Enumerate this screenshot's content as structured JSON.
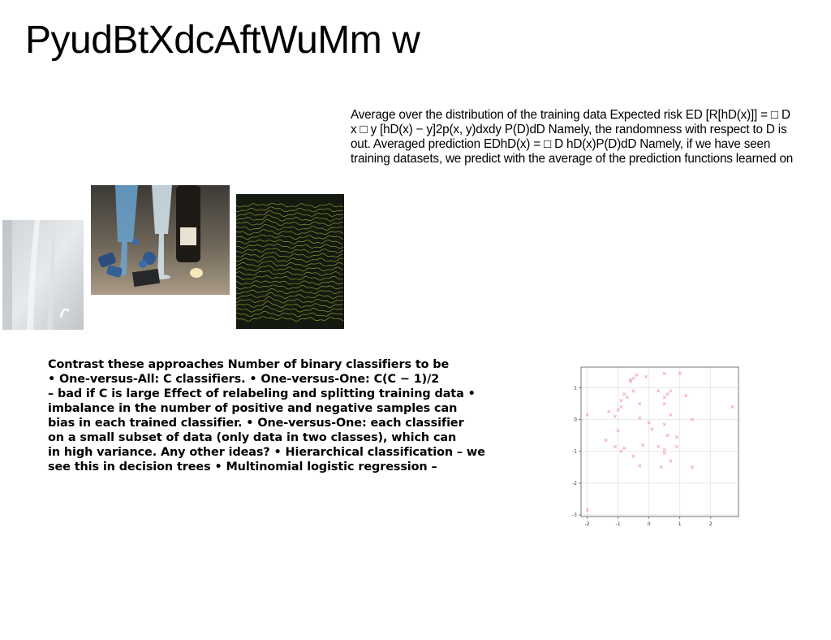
{
  "title": "PyudBtXdcAftWuMm w",
  "paragraph_right": [
    "Average over the distribution of the training data Expected risk ED [R[hD(x)]] = □ D",
    "x □ y [hD(x) − y]2p(x, y)dxdy P(D)dD Namely, the randomness with respect to D is",
    "out. Averaged prediction EDhD(x) = □ D hD(x)P(D)dD Namely, if we have seen",
    "training datasets, we predict with the average of the prediction functions learned on"
  ],
  "paragraph_left": [
    "Contrast these approaches Number of binary classifiers to be",
    "• One-versus-All: C classifiers. • One-versus-One: C(C − 1)/2",
    "– bad if C is large Effect of relabeling and splitting training data •",
    "imbalance in the number of positive and negative samples can",
    "bias in each trained classifier. • One-versus-One: each classifier",
    "on a small subset of data (only data in two classes), which can",
    "in high variance. Any other ideas? • Hierarchical classification – we",
    "see this in decision trees • Multinomial logistic regression –"
  ],
  "images": {
    "frosted": "frosted-glass-photo",
    "party": "blue-champagne-party-photo",
    "waves": "eeg-waveform-photo"
  },
  "colors": {
    "marker": "#f0a0c8",
    "waves_bg": "#141a10",
    "waves_line": "#b8c23a"
  },
  "chart_data": {
    "type": "scatter",
    "title": "",
    "xlabel": "",
    "ylabel": "",
    "xlim": [
      -2.2,
      2.9
    ],
    "ylim": [
      -3.05,
      1.65
    ],
    "xticks": [
      "-2",
      "-1",
      "0",
      "1",
      "2"
    ],
    "yticks": [
      "1",
      "0",
      "-1",
      "-2",
      "-3"
    ],
    "xtick_values": [
      -2,
      -1,
      0,
      1,
      2
    ],
    "ytick_values": [
      1,
      0,
      -1,
      -2,
      -3
    ],
    "grid": true,
    "marker": "x",
    "x": [
      -0.6,
      -0.5,
      -0.4,
      -0.1,
      0.5,
      1.0,
      -0.7,
      -0.6,
      0.5,
      -0.8,
      -0.9,
      -0.5,
      0.6,
      0.3,
      0.5,
      -0.3,
      -0.9,
      -1.0,
      0.7,
      1.2,
      -1.3,
      -1.1,
      -2.0,
      -0.3,
      0.5,
      0.0,
      0.1,
      0.6,
      1.4,
      -1.4,
      -0.2,
      -0.5,
      -1.1,
      -0.9,
      2.7,
      -0.8,
      0.5,
      0.9,
      0.9,
      -0.3,
      1.4,
      0.4,
      0.3,
      0.5,
      0.7,
      -1.0,
      0.7,
      -2.0
    ],
    "y": [
      1.2,
      1.3,
      1.4,
      1.35,
      1.45,
      1.45,
      0.7,
      1.25,
      0.7,
      0.8,
      0.6,
      0.9,
      0.8,
      0.9,
      0.5,
      0.5,
      0.4,
      0.3,
      0.15,
      0.75,
      0.25,
      0.1,
      0.15,
      0.05,
      -0.15,
      -0.1,
      -0.3,
      -0.5,
      0.0,
      -0.65,
      -0.8,
      -1.15,
      -0.85,
      -1.0,
      0.4,
      -0.9,
      -0.95,
      -0.55,
      -0.85,
      -1.45,
      -1.5,
      -1.5,
      -0.85,
      -1.05,
      -1.3,
      -0.35,
      0.9,
      -2.85
    ]
  }
}
